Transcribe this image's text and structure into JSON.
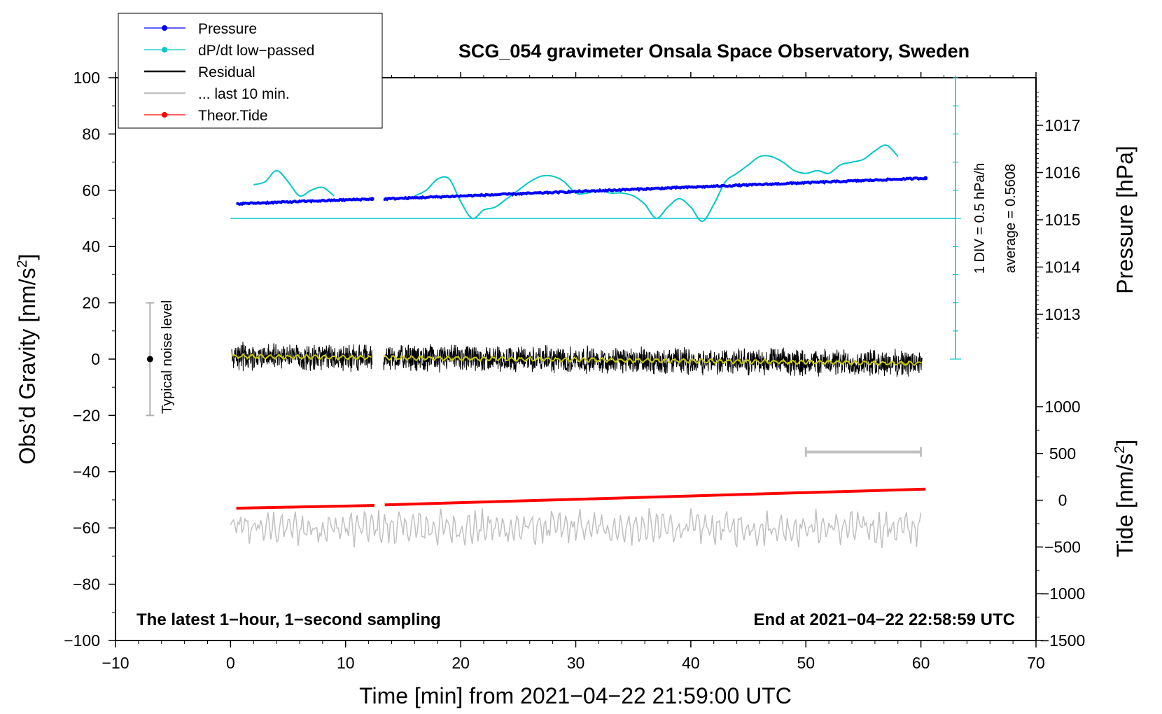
{
  "chart_data": {
    "type": "line",
    "title": "SCG_054 gravimeter Onsala Space Observatory, Sweden",
    "xlabel": "Time [min] from 2021−04−22 21:59:00 UTC",
    "ylabel_left_main": "Obs’d Gravity [nm/s",
    "ylabel_left_sup": "2",
    "ylabel_left_end": "]",
    "ylabel_right_pressure": "Pressure [hPa]",
    "ylabel_right_tide_main": "Tide [nm/s",
    "ylabel_right_tide_sup": "2",
    "ylabel_right_tide_end": "]",
    "xlim": [
      -10,
      70
    ],
    "ylim_left": [
      -100,
      100
    ],
    "ylim_tide": [
      -1500,
      1000
    ],
    "x_ticks": [
      "−10",
      "0",
      "10",
      "20",
      "30",
      "40",
      "50",
      "60",
      "70"
    ],
    "x_tick_values": [
      -10,
      0,
      10,
      20,
      30,
      40,
      50,
      60,
      70
    ],
    "y_left_ticks": [
      "−100",
      "−80",
      "−60",
      "−40",
      "−20",
      "0",
      "20",
      "40",
      "60",
      "80",
      "100"
    ],
    "y_left_tick_values": [
      -100,
      -80,
      -60,
      -40,
      -20,
      0,
      20,
      40,
      60,
      80,
      100
    ],
    "pressure_ticks": [
      "1013",
      "1014",
      "1015",
      "1016",
      "1017"
    ],
    "pressure_tick_values": [
      1013,
      1014,
      1015,
      1016,
      1017
    ],
    "tide_ticks": [
      "−1500",
      "−1000",
      "−500",
      "0",
      "500",
      "1000"
    ],
    "tide_tick_values": [
      -1500,
      -1000,
      -500,
      0,
      500,
      1000
    ],
    "legend": [
      {
        "label": "Pressure",
        "color": "#0000ff",
        "marker": true
      },
      {
        "label": "dP/dt low−passed",
        "color": "#00c8c8",
        "marker": true
      },
      {
        "label": "Residual",
        "color": "#000000",
        "marker": false
      },
      {
        "label": "... last 10 min.",
        "color": "#c0c0c0",
        "marker": false
      },
      {
        "label": "Theor.Tide",
        "color": "#ff0000",
        "marker": true
      }
    ],
    "annotations": {
      "noise_label": "Typical noise level",
      "noise_range": [
        -20,
        20
      ],
      "noise_x": -7,
      "div_label": "1 DIV = 0.5 hPa/h",
      "average_label": "average = 0.5608",
      "sampling_note": "The latest 1−hour, 1−second sampling",
      "end_note": "End at 2021−04−22 22:58:59 UTC",
      "last10_bar_x": [
        50,
        60
      ],
      "last10_bar_y": -33
    },
    "series": [
      {
        "name": "Pressure",
        "axis": "left",
        "color": "#0000ff",
        "segments": [
          {
            "x": [
              0.5,
              12.3
            ],
            "y": [
              55.2,
              56.9
            ]
          },
          {
            "x": [
              13.3,
              60.4
            ],
            "y": [
              56.9,
              64.3
            ]
          }
        ]
      },
      {
        "name": "dP/dt low-passed",
        "axis": "left",
        "color": "#00c8c8",
        "x": [
          2,
          3,
          4,
          5,
          6,
          7,
          8,
          9,
          16,
          17,
          18,
          19,
          20,
          21,
          22,
          23,
          24,
          25,
          26,
          27,
          28,
          29,
          30,
          31,
          32,
          33,
          34,
          35,
          36,
          37,
          38,
          39,
          40,
          41,
          42,
          43,
          44,
          45,
          46,
          47,
          48,
          49,
          50,
          51,
          52,
          53,
          54,
          55,
          56,
          57,
          58
        ],
        "y": [
          62,
          63,
          67,
          63,
          58,
          60,
          61,
          58,
          58,
          60,
          64,
          64,
          56,
          50,
          53,
          54,
          57,
          60,
          63,
          65,
          65,
          63,
          59,
          59,
          60,
          59,
          59,
          58,
          55,
          50,
          54,
          57,
          54,
          49,
          55,
          63,
          66,
          69,
          72,
          72,
          70,
          67,
          66,
          67,
          66,
          69,
          70,
          71,
          74,
          76,
          72
        ]
      },
      {
        "name": "dP/dt average line",
        "axis": "left",
        "color": "#00c8c8",
        "x": [
          0,
          63
        ],
        "y": [
          50,
          50
        ]
      },
      {
        "name": "Residual",
        "axis": "left",
        "color": "#000000",
        "segments": [
          {
            "x": [
              0.1,
              12.3
            ],
            "y_center": [
              1,
              0.5
            ]
          },
          {
            "x": [
              13.3,
              60.1
            ],
            "y_center": [
              0.5,
              -1.5
            ]
          }
        ],
        "amplitude": 4.5,
        "smoothed_color": "#c8c800"
      },
      {
        "name": "... last 10 min.",
        "axis": "left",
        "color": "#c0c0c0",
        "x_range": [
          0,
          60
        ],
        "y_center": -60,
        "amplitude": 6
      },
      {
        "name": "Theor.Tide",
        "axis": "left",
        "color": "#ff0000",
        "segments": [
          {
            "x": [
              0.5,
              12.5
            ],
            "y": [
              -53,
              -52
            ]
          },
          {
            "x": [
              13.4,
              60.4
            ],
            "y": [
              -51.8,
              -46.2
            ]
          }
        ]
      }
    ]
  }
}
